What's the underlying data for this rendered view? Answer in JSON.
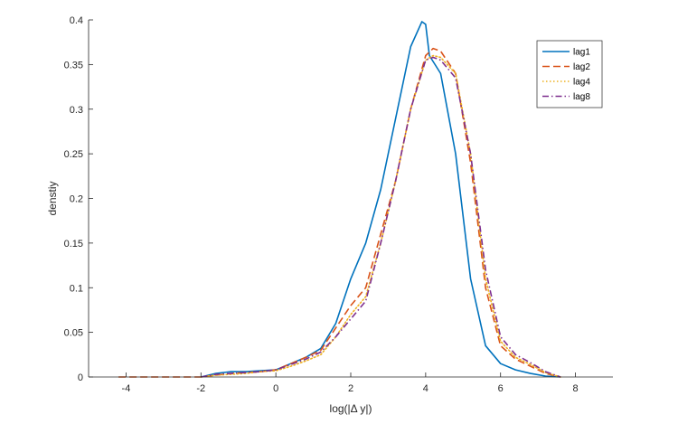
{
  "chart_data": {
    "type": "line",
    "title": "",
    "xlabel": "log(|Δ y|)",
    "ylabel": "denstiy",
    "xlim": [
      -5,
      9
    ],
    "ylim": [
      0,
      0.4
    ],
    "xticks": [
      -4,
      -2,
      0,
      2,
      4,
      6,
      8
    ],
    "yticks": [
      0,
      0.05,
      0.1,
      0.15,
      0.2,
      0.25,
      0.3,
      0.35,
      0.4
    ],
    "xtick_labels": [
      "-4",
      "-2",
      "0",
      "2",
      "4",
      "6",
      "8"
    ],
    "ytick_labels": [
      "0",
      "0.05",
      "0.1",
      "0.15",
      "0.2",
      "0.25",
      "0.3",
      "0.35",
      "0.4"
    ],
    "grid": false,
    "legend_position": "top-right",
    "series": [
      {
        "name": "lag1",
        "color": "#0072BD",
        "dash": "solid",
        "x": [
          -2,
          -1.6,
          -1.2,
          -0.8,
          -0.4,
          0,
          0.4,
          0.8,
          1.2,
          1.6,
          2,
          2.4,
          2.8,
          3.2,
          3.6,
          3.9,
          4.0,
          4.1,
          4.4,
          4.8,
          5.2,
          5.6,
          6.0,
          6.4,
          6.8,
          7.2,
          7.6
        ],
        "y": [
          0,
          0.004,
          0.006,
          0.006,
          0.007,
          0.008,
          0.015,
          0.022,
          0.032,
          0.06,
          0.11,
          0.15,
          0.21,
          0.29,
          0.37,
          0.398,
          0.395,
          0.36,
          0.34,
          0.25,
          0.11,
          0.035,
          0.015,
          0.008,
          0.004,
          0.001,
          0
        ]
      },
      {
        "name": "lag2",
        "color": "#D95319",
        "dash": "dashed",
        "x": [
          -4.2,
          -2.0,
          -1.6,
          -1.2,
          -0.8,
          -0.4,
          0,
          0.4,
          0.8,
          1.2,
          1.6,
          2,
          2.4,
          2.8,
          3.2,
          3.6,
          4.0,
          4.2,
          4.4,
          4.8,
          5.2,
          5.6,
          6.0,
          6.4,
          6.8,
          7.2,
          7.6
        ],
        "y": [
          0,
          0,
          0.002,
          0.004,
          0.005,
          0.006,
          0.008,
          0.015,
          0.022,
          0.03,
          0.055,
          0.08,
          0.1,
          0.16,
          0.22,
          0.3,
          0.36,
          0.368,
          0.365,
          0.34,
          0.24,
          0.1,
          0.035,
          0.02,
          0.012,
          0.004,
          0
        ]
      },
      {
        "name": "lag4",
        "color": "#EDB120",
        "dash": "dotted",
        "x": [
          -2.0,
          -1.6,
          -1.2,
          -0.8,
          -0.4,
          0,
          0.4,
          0.8,
          1.2,
          1.6,
          2,
          2.4,
          2.8,
          3.2,
          3.6,
          4.0,
          4.2,
          4.4,
          4.8,
          5.2,
          5.6,
          6.0,
          6.4,
          6.8,
          7.2,
          7.6
        ],
        "y": [
          0,
          0.002,
          0.003,
          0.004,
          0.006,
          0.007,
          0.012,
          0.018,
          0.025,
          0.045,
          0.07,
          0.09,
          0.15,
          0.22,
          0.3,
          0.355,
          0.36,
          0.358,
          0.34,
          0.25,
          0.11,
          0.04,
          0.022,
          0.014,
          0.005,
          0
        ]
      },
      {
        "name": "lag8",
        "color": "#7E2F8E",
        "dash": "dashdot",
        "x": [
          -2.0,
          -1.6,
          -1.2,
          -0.8,
          -0.4,
          0,
          0.4,
          0.8,
          1.2,
          1.6,
          2,
          2.4,
          2.8,
          3.2,
          3.6,
          4.0,
          4.2,
          4.4,
          4.8,
          5.2,
          5.6,
          6.0,
          6.4,
          6.8,
          7.2,
          7.6
        ],
        "y": [
          0,
          0.003,
          0.004,
          0.005,
          0.006,
          0.008,
          0.014,
          0.02,
          0.028,
          0.045,
          0.065,
          0.085,
          0.15,
          0.22,
          0.3,
          0.355,
          0.358,
          0.355,
          0.335,
          0.25,
          0.12,
          0.045,
          0.025,
          0.016,
          0.006,
          0
        ]
      }
    ]
  }
}
